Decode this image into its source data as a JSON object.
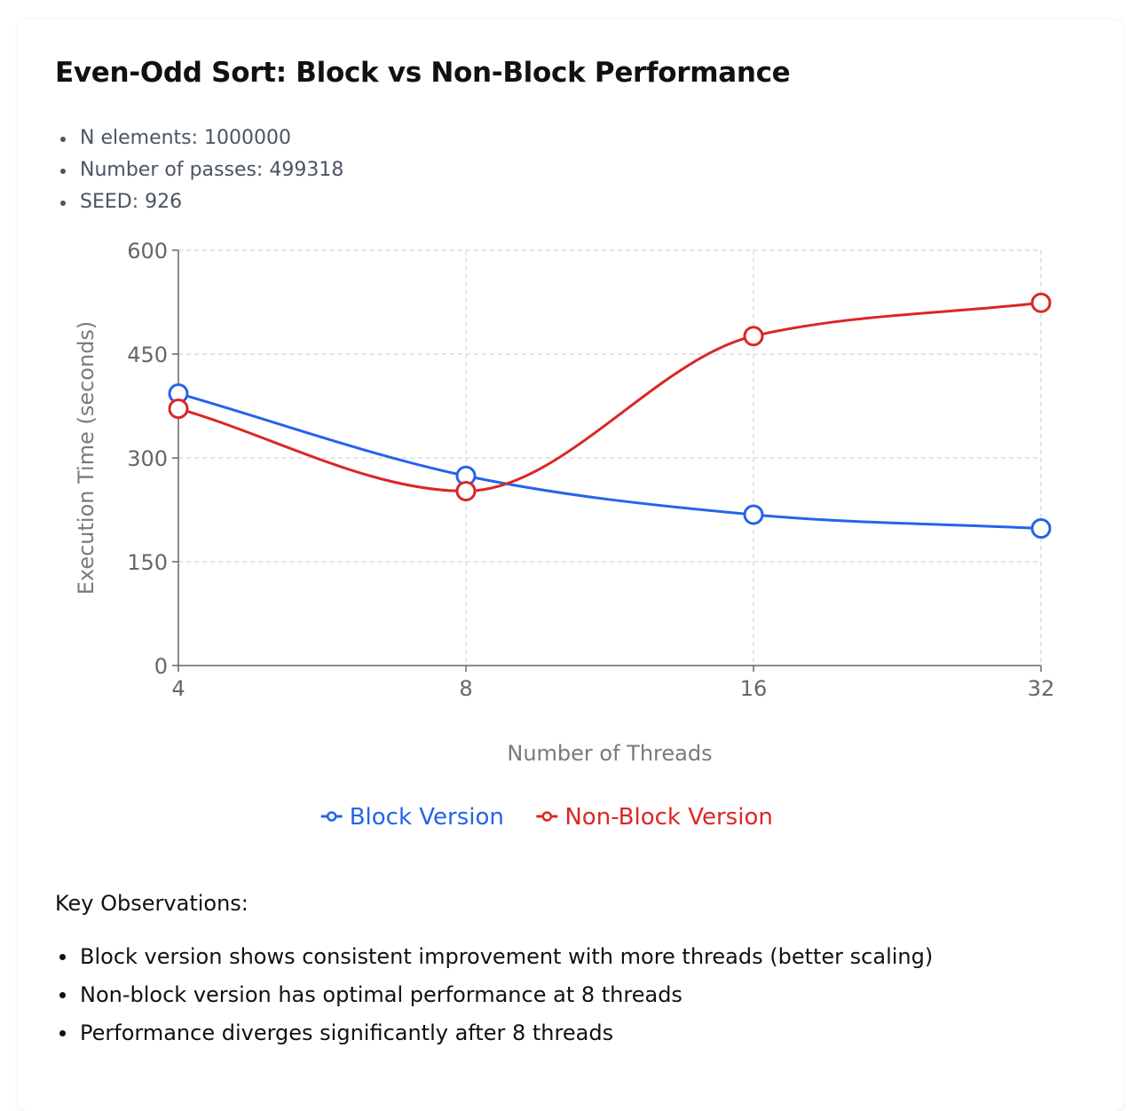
{
  "header": {
    "title": "Even-Odd Sort: Block vs Non-Block Performance"
  },
  "params": [
    "N elements: 1000000",
    "Number of passes: 499318",
    "SEED: 926"
  ],
  "chart_data": {
    "type": "line",
    "categories": [
      "4",
      "8",
      "16",
      "32"
    ],
    "xlabel": "Number of Threads",
    "ylabel": "Execution Time (seconds)",
    "ylim": [
      0,
      600
    ],
    "yticks": [
      0,
      150,
      300,
      450,
      600
    ],
    "grid": true,
    "legend": "bottom-center",
    "series": [
      {
        "name": "Block Version",
        "color": "#2563eb",
        "values": [
          393,
          274,
          218,
          198
        ]
      },
      {
        "name": "Non-Block Version",
        "color": "#dc2626",
        "values": [
          371,
          252,
          476,
          524
        ]
      }
    ]
  },
  "observations": {
    "heading": "Key Observations:",
    "items": [
      "Block version shows consistent improvement with more threads (better scaling)",
      "Non-block version has optimal performance at 8 threads",
      "Performance diverges significantly after 8 threads"
    ]
  }
}
